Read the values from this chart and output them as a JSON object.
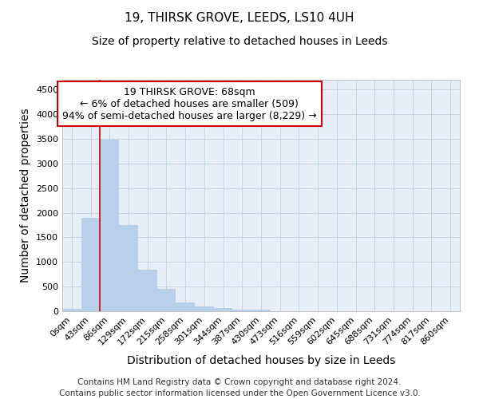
{
  "title1": "19, THIRSK GROVE, LEEDS, LS10 4UH",
  "title2": "Size of property relative to detached houses in Leeds",
  "xlabel": "Distribution of detached houses by size in Leeds",
  "ylabel": "Number of detached properties",
  "bar_color": "#b8d0ea",
  "bar_edge_color": "#b8d0ea",
  "x_labels": [
    "0sqm",
    "43sqm",
    "86sqm",
    "129sqm",
    "172sqm",
    "215sqm",
    "258sqm",
    "301sqm",
    "344sqm",
    "387sqm",
    "430sqm",
    "473sqm",
    "516sqm",
    "559sqm",
    "602sqm",
    "645sqm",
    "688sqm",
    "731sqm",
    "774sqm",
    "817sqm",
    "860sqm"
  ],
  "bar_values": [
    50,
    1900,
    3480,
    1750,
    850,
    450,
    175,
    100,
    60,
    40,
    35,
    0,
    0,
    0,
    0,
    0,
    0,
    0,
    0,
    0,
    0
  ],
  "ylim": [
    0,
    4700
  ],
  "yticks": [
    0,
    500,
    1000,
    1500,
    2000,
    2500,
    3000,
    3500,
    4000,
    4500
  ],
  "vline_color": "#cc0000",
  "annotation_text": "19 THIRSK GROVE: 68sqm\n← 6% of detached houses are smaller (509)\n94% of semi-detached houses are larger (8,229) →",
  "annotation_box_color": "#ffffff",
  "annotation_box_edge": "#cc0000",
  "footer1": "Contains HM Land Registry data © Crown copyright and database right 2024.",
  "footer2": "Contains public sector information licensed under the Open Government Licence v3.0.",
  "background_color": "#ffffff",
  "plot_bg_color": "#e8eef5",
  "grid_color": "#c0cfe0",
  "title1_fontsize": 11,
  "title2_fontsize": 10,
  "axis_label_fontsize": 10,
  "tick_fontsize": 8,
  "annotation_fontsize": 9,
  "footer_fontsize": 7.5
}
